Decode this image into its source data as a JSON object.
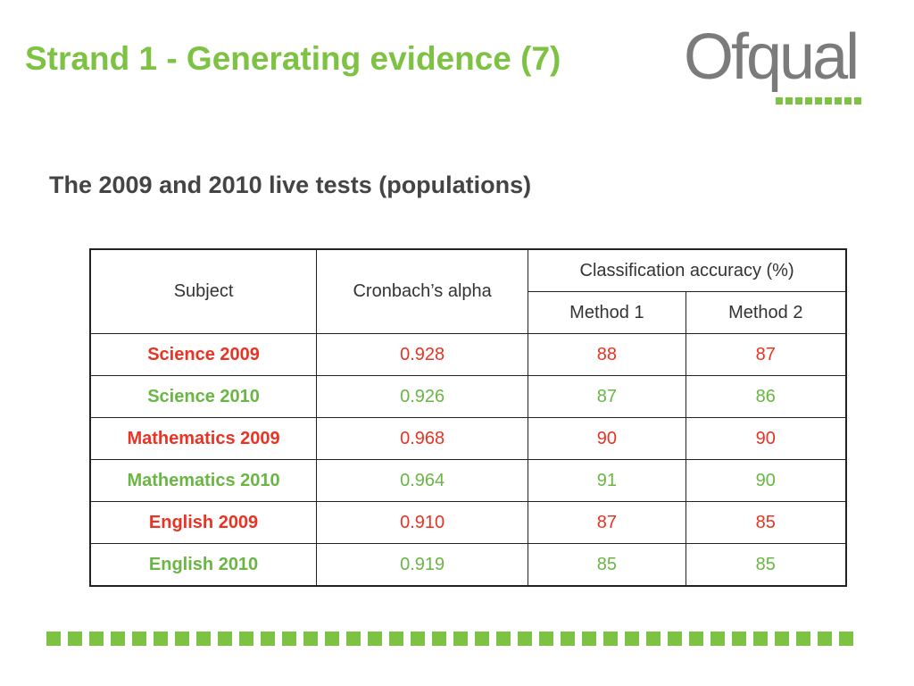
{
  "slide": {
    "title": "Strand 1 - Generating evidence (7)",
    "subtitle": "The 2009 and 2010 live tests (populations)"
  },
  "logo": {
    "text": "Ofqual"
  },
  "colors": {
    "title_green": "#7dc242",
    "red_row": "#ea3323",
    "green_row": "#6ab644",
    "logo_grey": "#7b7b7b"
  },
  "table": {
    "headers": {
      "subject": "Subject",
      "alpha": "Cronbach’s alpha",
      "accuracy": "Classification accuracy (%)",
      "method1": "Method 1",
      "method2": "Method 2"
    },
    "rows": [
      {
        "subject": "Science 2009",
        "alpha": "0.928",
        "method1": "88",
        "method2": "87",
        "color": "red"
      },
      {
        "subject": "Science 2010",
        "alpha": "0.926",
        "method1": "87",
        "method2": "86",
        "color": "green"
      },
      {
        "subject": "Mathematics 2009",
        "alpha": "0.968",
        "method1": "90",
        "method2": "90",
        "color": "red"
      },
      {
        "subject": "Mathematics 2010",
        "alpha": "0.964",
        "method1": "91",
        "method2": "90",
        "color": "green"
      },
      {
        "subject": "English 2009",
        "alpha": "0.910",
        "method1": "87",
        "method2": "85",
        "color": "red"
      },
      {
        "subject": "English 2010",
        "alpha": "0.919",
        "method1": "85",
        "method2": "85",
        "color": "green"
      }
    ]
  }
}
